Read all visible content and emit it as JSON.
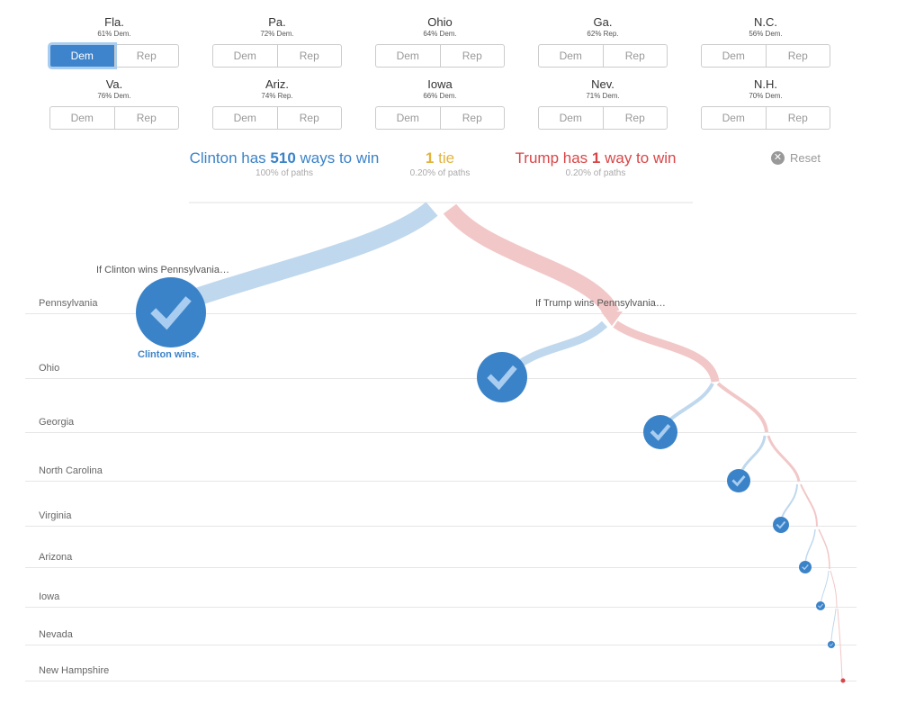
{
  "states_row1": [
    {
      "name": "Fla.",
      "prob": "61% Dem.",
      "dem": "Dem",
      "rep": "Rep",
      "selected": "Dem"
    },
    {
      "name": "Pa.",
      "prob": "72% Dem.",
      "dem": "Dem",
      "rep": "Rep",
      "selected": ""
    },
    {
      "name": "Ohio",
      "prob": "64% Dem.",
      "dem": "Dem",
      "rep": "Rep",
      "selected": ""
    },
    {
      "name": "Ga.",
      "prob": "62% Rep.",
      "dem": "Dem",
      "rep": "Rep",
      "selected": ""
    },
    {
      "name": "N.C.",
      "prob": "56% Dem.",
      "dem": "Dem",
      "rep": "Rep",
      "selected": ""
    }
  ],
  "states_row2": [
    {
      "name": "Va.",
      "prob": "76% Dem.",
      "dem": "Dem",
      "rep": "Rep",
      "selected": ""
    },
    {
      "name": "Ariz.",
      "prob": "74% Rep.",
      "dem": "Dem",
      "rep": "Rep",
      "selected": ""
    },
    {
      "name": "Iowa",
      "prob": "66% Dem.",
      "dem": "Dem",
      "rep": "Rep",
      "selected": ""
    },
    {
      "name": "Nev.",
      "prob": "71% Dem.",
      "dem": "Dem",
      "rep": "Rep",
      "selected": ""
    },
    {
      "name": "N.H.",
      "prob": "70% Dem.",
      "dem": "Dem",
      "rep": "Rep",
      "selected": ""
    }
  ],
  "summary": {
    "clinton_pre": "Clinton has ",
    "clinton_num": "510",
    "clinton_post": " ways to win",
    "clinton_sub": "100% of paths",
    "tie_num": "1",
    "tie_post": " tie",
    "tie_sub": "0.20% of paths",
    "trump_pre": "Trump has ",
    "trump_num": "1",
    "trump_post": " way to win",
    "trump_sub": "0.20% of paths"
  },
  "reset_label": "Reset",
  "tree": {
    "rows": [
      "Pennsylvania",
      "Ohio",
      "Georgia",
      "North Carolina",
      "Virginia",
      "Arizona",
      "Iowa",
      "Nevada",
      "New Hampshire"
    ],
    "if_clinton": "If Clinton wins Pennsylvania…",
    "if_trump": "If Trump wins Pennsylvania…",
    "clinton_wins": "Clinton wins."
  },
  "colors": {
    "dem": "#3b83c8",
    "rep": "#d94648",
    "tie": "#e2b43e",
    "dem_light": "#bfd8ee",
    "rep_light": "#f2c7c7"
  },
  "icons": {
    "checkmark": "check-icon",
    "reset": "close-circle-icon"
  }
}
